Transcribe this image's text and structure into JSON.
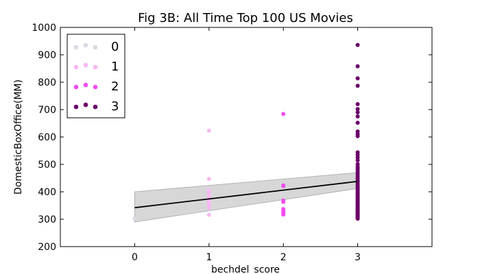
{
  "chart_data": {
    "type": "scatter",
    "title": "Fig 3B: All Time Top 100 US Movies",
    "xlabel": "bechdel_score",
    "ylabel": "DomesticBoxOffice(MM)",
    "xlim": [
      -1,
      4
    ],
    "ylim": [
      200,
      1000
    ],
    "xticks": [
      0,
      1,
      2,
      3
    ],
    "yticks": [
      200,
      300,
      400,
      500,
      600,
      700,
      800,
      900,
      1000
    ],
    "grid": false,
    "legend": {
      "placement": "top-left",
      "entries": [
        {
          "label": "0",
          "color": "#d9d9e3"
        },
        {
          "label": "1",
          "color": "#f7b8f0"
        },
        {
          "label": "2",
          "color": "#f24df0"
        },
        {
          "label": "3",
          "color": "#6b0068"
        }
      ]
    },
    "series": [
      {
        "name": "0",
        "color": "#d9d9e3",
        "x": [
          0
        ],
        "y": [
          303
        ]
      },
      {
        "name": "1",
        "color": "#f7b8f0",
        "x": [
          1,
          1,
          1,
          1,
          1,
          1,
          1,
          1,
          1,
          1,
          1,
          1,
          1
        ],
        "y": [
          623,
          447,
          405,
          399,
          393,
          385,
          378,
          370,
          362,
          355,
          348,
          342,
          316
        ]
      },
      {
        "name": "2",
        "color": "#f24df0",
        "x": [
          2,
          2,
          2,
          2,
          2,
          2,
          2,
          2,
          2,
          2
        ],
        "y": [
          684,
          423,
          421,
          368,
          363,
          337,
          331,
          326,
          321,
          317
        ]
      },
      {
        "name": "3",
        "color": "#6b0068",
        "x": [
          3,
          3,
          3,
          3,
          3,
          3,
          3,
          3,
          3,
          3,
          3,
          3,
          3,
          3,
          3,
          3,
          3,
          3,
          3,
          3,
          3,
          3,
          3,
          3,
          3,
          3,
          3,
          3,
          3,
          3,
          3,
          3,
          3,
          3,
          3,
          3,
          3,
          3,
          3,
          3,
          3,
          3,
          3,
          3,
          3,
          3,
          3,
          3,
          3,
          3,
          3,
          3,
          3,
          3,
          3,
          3,
          3,
          3,
          3,
          3
        ],
        "y": [
          936,
          858,
          814,
          787,
          720,
          702,
          690,
          675,
          652,
          620,
          611,
          603,
          544,
          535,
          525,
          515,
          501,
          492,
          485,
          478,
          471,
          463,
          456,
          448,
          441,
          435,
          430,
          425,
          420,
          415,
          410,
          405,
          400,
          395,
          390,
          386,
          382,
          378,
          374,
          370,
          366,
          362,
          358,
          354,
          350,
          346,
          342,
          338,
          335,
          332,
          329,
          326,
          323,
          320,
          317,
          314,
          311,
          308,
          305,
          302
        ]
      }
    ],
    "regression": {
      "color": "#000000",
      "x": [
        0,
        3
      ],
      "y": [
        342,
        438
      ],
      "ci_lower": [
        290,
        412
      ],
      "ci_upper": [
        400,
        470
      ],
      "ci_color": "#bdbdbd"
    }
  }
}
